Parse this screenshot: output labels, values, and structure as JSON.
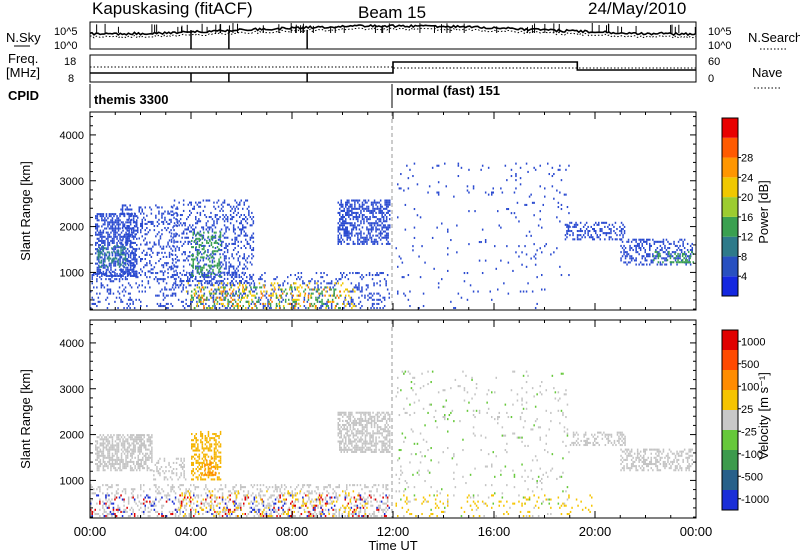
{
  "header": {
    "title": "Kapuskasing (fitACF)",
    "beam": "Beam 15",
    "date": "24/May/2010"
  },
  "sky_panel": {
    "left_label": "N.Sky",
    "right_label": "N.Search",
    "left_ticks": [
      "10^5",
      "10^0"
    ],
    "right_ticks": [
      "10^5",
      "10^0"
    ]
  },
  "freq_panel": {
    "left_label_1": "Freq.",
    "left_label_2": "[MHz]",
    "right_label": "Nave",
    "left_ticks": [
      "18",
      "8"
    ],
    "right_ticks": [
      "60",
      "0"
    ]
  },
  "cpid": {
    "label": "CPID",
    "mode_1": "themis 3300",
    "mode_2": "normal (fast) 151",
    "switch_time_h": 12
  },
  "chart_data": [
    {
      "type": "heatmap",
      "name": "power",
      "xlabel": "",
      "ylabel": "Slant Range [km]",
      "xlim": [
        0,
        24
      ],
      "ylim": [
        180,
        4500
      ],
      "yticks": [
        1000,
        2000,
        3000,
        4000
      ],
      "colorbar": {
        "label": "Power [dB]",
        "ticks": [
          "4",
          "8",
          "12",
          "16",
          "20",
          "24",
          "28"
        ],
        "colors": [
          "#1428e0",
          "#2850c0",
          "#2e7a8a",
          "#3aa050",
          "#9ccc30",
          "#f0c800",
          "#ff9600",
          "#ff5a00",
          "#e80000"
        ]
      },
      "regions": [
        {
          "t0": 0.2,
          "t1": 1.9,
          "r0": 900,
          "r1": 2300,
          "color": "#2a4ad0",
          "density": 0.55
        },
        {
          "t0": 0.3,
          "t1": 1.5,
          "r0": 1100,
          "r1": 1600,
          "color": "#2e8a80",
          "density": 0.35
        },
        {
          "t0": 1.2,
          "t1": 3.5,
          "r0": 1000,
          "r1": 2500,
          "color": "#2a4ad0",
          "density": 0.22
        },
        {
          "t0": 3.2,
          "t1": 6.5,
          "r0": 700,
          "r1": 2600,
          "color": "#2a4ad0",
          "density": 0.25
        },
        {
          "t0": 4.0,
          "t1": 5.2,
          "r0": 900,
          "r1": 1900,
          "color": "#3aa050",
          "density": 0.3
        },
        {
          "t0": 0.0,
          "t1": 11.9,
          "r0": 200,
          "r1": 1000,
          "color": "#2a4ad0",
          "density": 0.18
        },
        {
          "t0": 3.8,
          "t1": 10.5,
          "r0": 200,
          "r1": 800,
          "color": "#f0c800",
          "density": 0.12
        },
        {
          "t0": 4.0,
          "t1": 10.0,
          "r0": 200,
          "r1": 700,
          "color": "#ff7800",
          "density": 0.07
        },
        {
          "t0": 4.0,
          "t1": 10.0,
          "r0": 200,
          "r1": 700,
          "color": "#3aa050",
          "density": 0.12
        },
        {
          "t0": 9.8,
          "t1": 11.9,
          "r0": 1600,
          "r1": 2600,
          "color": "#2a4ad0",
          "density": 0.55
        },
        {
          "t0": 12.1,
          "t1": 19.0,
          "r0": 200,
          "r1": 3400,
          "color": "#2a4ad0",
          "density": 0.025
        },
        {
          "t0": 18.8,
          "t1": 21.2,
          "r0": 1700,
          "r1": 2100,
          "color": "#2a4ad0",
          "density": 0.35
        },
        {
          "t0": 21.0,
          "t1": 23.9,
          "r0": 1150,
          "r1": 1750,
          "color": "#2a4ad0",
          "density": 0.35
        },
        {
          "t0": 22.3,
          "t1": 23.9,
          "r0": 1200,
          "r1": 1450,
          "color": "#3aa050",
          "density": 0.3
        }
      ]
    },
    {
      "type": "heatmap",
      "name": "velocity",
      "xlabel": "Time UT",
      "ylabel": "Slant Range [km]",
      "xlim": [
        0,
        24
      ],
      "ylim": [
        180,
        4500
      ],
      "xticks": [
        "00:00",
        "04:00",
        "08:00",
        "12:00",
        "16:00",
        "20:00",
        "00:00"
      ],
      "yticks": [
        1000,
        2000,
        3000,
        4000
      ],
      "colorbar": {
        "label": "Velocity [m s⁻¹]",
        "ticks": [
          "1000",
          "500",
          "100",
          "25",
          "-25",
          "-100",
          "-500",
          "-1000"
        ],
        "colors": [
          "#1a2ed8",
          "#28608a",
          "#3c9a4c",
          "#66c83a",
          "#c8c8c8",
          "#f5c400",
          "#ff8c00",
          "#ff4a00",
          "#e00000"
        ]
      },
      "regions": [
        {
          "t0": 0.2,
          "t1": 2.5,
          "r0": 1200,
          "r1": 2000,
          "color": "#c4c4c4",
          "density": 0.6
        },
        {
          "t0": 2.5,
          "t1": 3.8,
          "r0": 1000,
          "r1": 1500,
          "color": "#c4c4c4",
          "density": 0.3
        },
        {
          "t0": 4.0,
          "t1": 5.2,
          "r0": 1000,
          "r1": 2100,
          "color": "#f5b400",
          "density": 0.45
        },
        {
          "t0": 4.4,
          "t1": 5.0,
          "r0": 1100,
          "r1": 1500,
          "color": "#ff8c00",
          "density": 0.3
        },
        {
          "t0": 9.8,
          "t1": 11.9,
          "r0": 1600,
          "r1": 2500,
          "color": "#c4c4c4",
          "density": 0.6
        },
        {
          "t0": 0.0,
          "t1": 11.9,
          "r0": 200,
          "r1": 900,
          "color": "#c4c4c4",
          "density": 0.22
        },
        {
          "t0": 0.0,
          "t1": 11.9,
          "r0": 200,
          "r1": 700,
          "color": "#e00000",
          "density": 0.06
        },
        {
          "t0": 0.0,
          "t1": 11.9,
          "r0": 200,
          "r1": 700,
          "color": "#1a2ed8",
          "density": 0.05
        },
        {
          "t0": 3.5,
          "t1": 11.0,
          "r0": 200,
          "r1": 800,
          "color": "#f5c400",
          "density": 0.08
        },
        {
          "t0": 12.1,
          "t1": 19.0,
          "r0": 200,
          "r1": 3400,
          "color": "#c4c4c4",
          "density": 0.03
        },
        {
          "t0": 12.1,
          "t1": 19.0,
          "r0": 200,
          "r1": 3400,
          "color": "#66c83a",
          "density": 0.012
        },
        {
          "t0": 12.1,
          "t1": 20.0,
          "r0": 200,
          "r1": 700,
          "color": "#f5c400",
          "density": 0.06
        },
        {
          "t0": 19.0,
          "t1": 21.2,
          "r0": 1750,
          "r1": 2050,
          "color": "#c4c4c4",
          "density": 0.4
        },
        {
          "t0": 21.0,
          "t1": 23.9,
          "r0": 1200,
          "r1": 1700,
          "color": "#c4c4c4",
          "density": 0.4
        }
      ]
    }
  ]
}
